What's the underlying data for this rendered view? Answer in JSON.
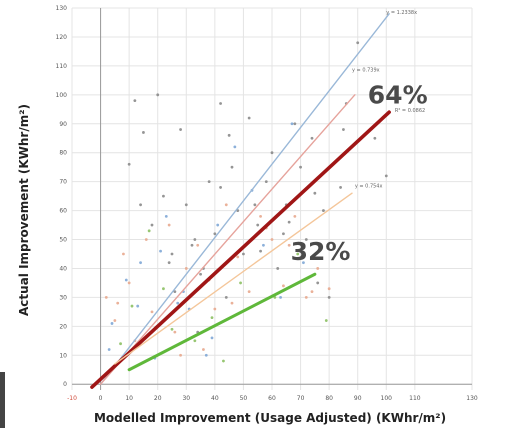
{
  "colors": {
    "grid": "#e4e4e4",
    "axis": "#9a9a9a",
    "blue_line": "#9ab8d8",
    "pink_line": "#e6a39c",
    "red_line": "#a01616",
    "orange_line": "#f4c69a",
    "green_line": "#5fb83a"
  },
  "chart_data": {
    "type": "scatter",
    "xlabel": "Modelled Improvement (Usage Adjusted) (KWhr/m²)",
    "ylabel": "Actual Improvement (KWhr/m²)",
    "xlim": [
      -10,
      130
    ],
    "ylim": [
      -2,
      130
    ],
    "x_ticks": [
      "-10",
      "0",
      "10",
      "20",
      "30",
      "40",
      "50",
      "60",
      "70",
      "80",
      "90",
      "100",
      "110",
      "130"
    ],
    "y_ticks": [
      "0",
      "10",
      "20",
      "30",
      "40",
      "50",
      "60",
      "70",
      "80",
      "90",
      "100",
      "110",
      "120",
      "130"
    ],
    "grid": true,
    "annotations": [
      {
        "text": "64%",
        "x": 104,
        "y": 97
      },
      {
        "text": "32%",
        "x": 77,
        "y": 43
      }
    ],
    "trendline_labels": [
      {
        "text": "y = 1.2338x",
        "x": 100,
        "y": 128
      },
      {
        "text": "y = 0.739x",
        "x": 88,
        "y": 108
      },
      {
        "text": "R² = 0.0862",
        "x": 103,
        "y": 94
      },
      {
        "text": "y = 0.754x",
        "x": 89,
        "y": 68
      }
    ],
    "lines": [
      {
        "color": "#9ab8d8",
        "x": [
          0,
          101
        ],
        "y": [
          0,
          128
        ]
      },
      {
        "color": "#e6a39c",
        "x": [
          0,
          89
        ],
        "y": [
          0,
          100
        ]
      },
      {
        "color": "#a01616",
        "x": [
          -3,
          101
        ],
        "y": [
          -1,
          94
        ]
      },
      {
        "color": "#f4c69a",
        "x": [
          5,
          88
        ],
        "y": [
          7,
          66
        ]
      },
      {
        "color": "#5fb83a",
        "x": [
          10,
          75
        ],
        "y": [
          5,
          38
        ]
      }
    ],
    "series": [
      {
        "color": "#8a8a8a",
        "x": [
          12,
          15,
          20,
          25,
          28,
          30,
          33,
          35,
          38,
          40,
          42,
          45,
          48,
          50,
          52,
          55,
          58,
          60,
          62,
          65,
          68,
          70,
          72,
          75,
          78,
          80,
          85,
          90,
          100,
          18,
          22,
          26,
          32,
          36,
          44,
          46,
          54,
          64,
          74,
          86,
          10,
          14,
          24,
          34,
          42,
          56,
          66,
          76,
          84,
          96
        ],
        "y": [
          98,
          87,
          100,
          45,
          88,
          62,
          50,
          38,
          70,
          52,
          97,
          86,
          60,
          45,
          92,
          55,
          70,
          80,
          40,
          62,
          90,
          75,
          50,
          66,
          60,
          30,
          88,
          118,
          72,
          55,
          65,
          32,
          48,
          40,
          30,
          75,
          62,
          52,
          85,
          97,
          76,
          62,
          42,
          18,
          68,
          46,
          56,
          35,
          68,
          85
        ]
      },
      {
        "color": "#e8a88e",
        "x": [
          2,
          5,
          8,
          12,
          16,
          20,
          24,
          28,
          30,
          34,
          38,
          40,
          44,
          48,
          52,
          56,
          60,
          64,
          68,
          72,
          76,
          80,
          6,
          10,
          18,
          26,
          36,
          46,
          58,
          66,
          74
        ],
        "y": [
          30,
          22,
          45,
          15,
          50,
          20,
          55,
          10,
          40,
          48,
          36,
          26,
          62,
          44,
          32,
          58,
          50,
          34,
          58,
          30,
          40,
          33,
          28,
          35,
          25,
          18,
          12,
          28,
          54,
          48,
          32
        ]
      },
      {
        "color": "#7fa7d6",
        "x": [
          4,
          9,
          14,
          19,
          23,
          27,
          31,
          37,
          41,
          47,
          53,
          57,
          63,
          67,
          71,
          3,
          13,
          21,
          29,
          39
        ],
        "y": [
          21,
          36,
          42,
          9,
          58,
          28,
          26,
          10,
          55,
          82,
          67,
          48,
          30,
          90,
          42,
          12,
          27,
          46,
          32,
          16
        ]
      },
      {
        "color": "#8cc063",
        "x": [
          11,
          17,
          25,
          33,
          43,
          49,
          61,
          69,
          79,
          7,
          22,
          39
        ],
        "y": [
          27,
          53,
          19,
          15,
          8,
          35,
          30,
          45,
          22,
          14,
          33,
          23
        ]
      }
    ]
  }
}
